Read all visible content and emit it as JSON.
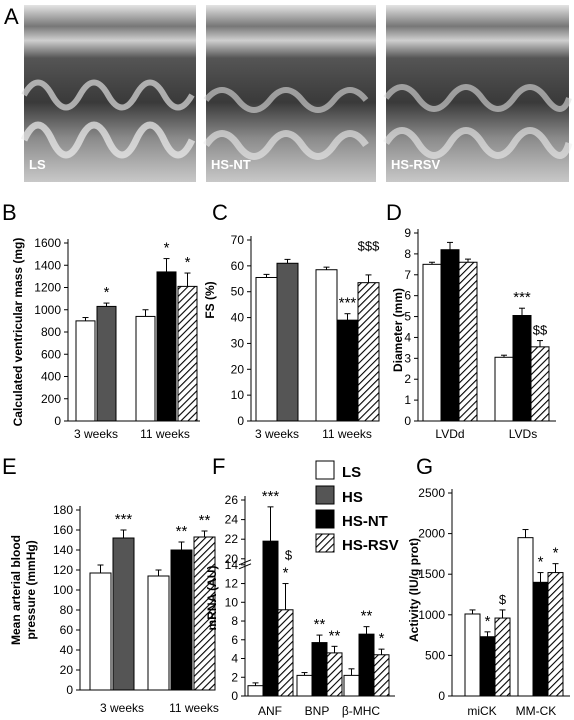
{
  "colors": {
    "LS": "#ffffff",
    "HS": "#555555",
    "HS-NT": "#000000",
    "HS-RSV": "hatch"
  },
  "legend": {
    "items": [
      "LS",
      "HS",
      "HS-NT",
      "HS-RSV"
    ]
  },
  "panels": {
    "A": {
      "letter": "A",
      "labels": [
        "LS",
        "HS-NT",
        "HS-RSV"
      ]
    }
  },
  "chart_data": [
    {
      "id": "B",
      "letter": "B",
      "type": "bar",
      "ylabel": "Calculated ventricular mass (mg)",
      "ylim": [
        0,
        1600
      ],
      "yticks": [
        0,
        200,
        400,
        600,
        800,
        1000,
        1200,
        1400,
        1600
      ],
      "groups": [
        {
          "label": "3 weeks",
          "bars": [
            {
              "series": "LS",
              "value": 900,
              "err": 30
            },
            {
              "series": "HS",
              "value": 1030,
              "err": 30,
              "sig": "*"
            }
          ]
        },
        {
          "label": "11 weeks",
          "bars": [
            {
              "series": "LS",
              "value": 940,
              "err": 60
            },
            {
              "series": "HS-NT",
              "value": 1340,
              "err": 120,
              "sig": "*"
            },
            {
              "series": "HS-RSV",
              "value": 1210,
              "err": 120,
              "sig": "*"
            }
          ]
        }
      ]
    },
    {
      "id": "C",
      "letter": "C",
      "type": "bar",
      "ylabel": "FS (%)",
      "ylim": [
        0,
        70
      ],
      "yticks": [
        0,
        10,
        20,
        30,
        40,
        50,
        60,
        70
      ],
      "groups": [
        {
          "label": "3 weeks",
          "bars": [
            {
              "series": "LS",
              "value": 55.5,
              "err": 1.2
            },
            {
              "series": "HS",
              "value": 61,
              "err": 1.5
            }
          ]
        },
        {
          "label": "11 weeks",
          "bars": [
            {
              "series": "LS",
              "value": 58.5,
              "err": 1
            },
            {
              "series": "HS-NT",
              "value": 39,
              "err": 2.5,
              "sig": "***"
            },
            {
              "series": "HS-RSV",
              "value": 53.5,
              "err": 3
            }
          ]
        }
      ],
      "annotations": [
        {
          "text": "$$$",
          "group": 1,
          "bar": 2,
          "value": 66
        }
      ]
    },
    {
      "id": "D",
      "letter": "D",
      "type": "bar",
      "ylabel": "Diameter (mm)",
      "ylim": [
        0,
        9
      ],
      "yticks": [
        0,
        1,
        2,
        3,
        4,
        5,
        6,
        7,
        8,
        9
      ],
      "groups": [
        {
          "label": "LVDd",
          "bars": [
            {
              "series": "LS",
              "value": 7.5,
              "err": 0.1
            },
            {
              "series": "HS-NT",
              "value": 8.2,
              "err": 0.35
            },
            {
              "series": "HS-RSV",
              "value": 7.6,
              "err": 0.15
            }
          ]
        },
        {
          "label": "LVDs",
          "bars": [
            {
              "series": "LS",
              "value": 3.05,
              "err": 0.1
            },
            {
              "series": "HS-NT",
              "value": 5.05,
              "err": 0.35,
              "sig": "***"
            },
            {
              "series": "HS-RSV",
              "value": 3.55,
              "err": 0.3,
              "sig": "$$"
            }
          ]
        }
      ]
    },
    {
      "id": "E",
      "letter": "E",
      "type": "bar",
      "ylabel": "Mean arterial blood pressure (mmHg)",
      "ylim": [
        0,
        180
      ],
      "yticks": [
        0,
        20,
        40,
        60,
        80,
        100,
        120,
        140,
        160,
        180
      ],
      "groups": [
        {
          "label": "3 weeks",
          "bars": [
            {
              "series": "LS",
              "value": 117,
              "err": 8
            },
            {
              "series": "HS",
              "value": 152,
              "err": 8,
              "sig": "***"
            }
          ]
        },
        {
          "label": "11 weeks",
          "bars": [
            {
              "series": "LS",
              "value": 114,
              "err": 6
            },
            {
              "series": "HS-NT",
              "value": 140,
              "err": 8,
              "sig": "**"
            },
            {
              "series": "HS-RSV",
              "value": 153,
              "err": 6,
              "sig": "**"
            }
          ]
        }
      ]
    },
    {
      "id": "F",
      "letter": "F",
      "type": "bar",
      "ylabel": "mRNA (AU)",
      "ylim": [
        0,
        26
      ],
      "axis_break": [
        14,
        20
      ],
      "yticks": [
        0,
        2,
        4,
        6,
        8,
        10,
        12,
        14,
        20,
        22,
        24,
        26
      ],
      "groups": [
        {
          "label": "ANF",
          "bars": [
            {
              "series": "LS",
              "value": 1.1,
              "err": 0.3
            },
            {
              "series": "HS-NT",
              "value": 21.8,
              "err": 3.5,
              "sig": "***"
            },
            {
              "series": "HS-RSV",
              "value": 9.2,
              "err": 2.8,
              "sig": "*",
              "sig2": "$"
            }
          ]
        },
        {
          "label": "BNP",
          "bars": [
            {
              "series": "LS",
              "value": 2.2,
              "err": 0.3
            },
            {
              "series": "HS-NT",
              "value": 5.7,
              "err": 0.8,
              "sig": "**"
            },
            {
              "series": "HS-RSV",
              "value": 4.6,
              "err": 0.7,
              "sig": "**"
            }
          ]
        },
        {
          "label": "β-MHC",
          "bars": [
            {
              "series": "LS",
              "value": 2.2,
              "err": 0.7
            },
            {
              "series": "HS-NT",
              "value": 6.6,
              "err": 0.8,
              "sig": "**"
            },
            {
              "series": "HS-RSV",
              "value": 4.4,
              "err": 0.6,
              "sig": "*"
            }
          ]
        }
      ]
    },
    {
      "id": "G",
      "letter": "G",
      "type": "bar",
      "ylabel": "Activity (IU/g prot)",
      "ylim": [
        0,
        2500
      ],
      "yticks": [
        0,
        500,
        1000,
        1500,
        2000,
        2500
      ],
      "groups": [
        {
          "label": "miCK",
          "bars": [
            {
              "series": "LS",
              "value": 1010,
              "err": 50
            },
            {
              "series": "HS-NT",
              "value": 730,
              "err": 60,
              "sig": "*"
            },
            {
              "series": "HS-RSV",
              "value": 960,
              "err": 100,
              "sig": "$"
            }
          ]
        },
        {
          "label": "MM-CK",
          "bars": [
            {
              "series": "LS",
              "value": 1950,
              "err": 100
            },
            {
              "series": "HS-NT",
              "value": 1400,
              "err": 120,
              "sig": "*"
            },
            {
              "series": "HS-RSV",
              "value": 1520,
              "err": 110,
              "sig": "*"
            }
          ]
        }
      ]
    }
  ]
}
